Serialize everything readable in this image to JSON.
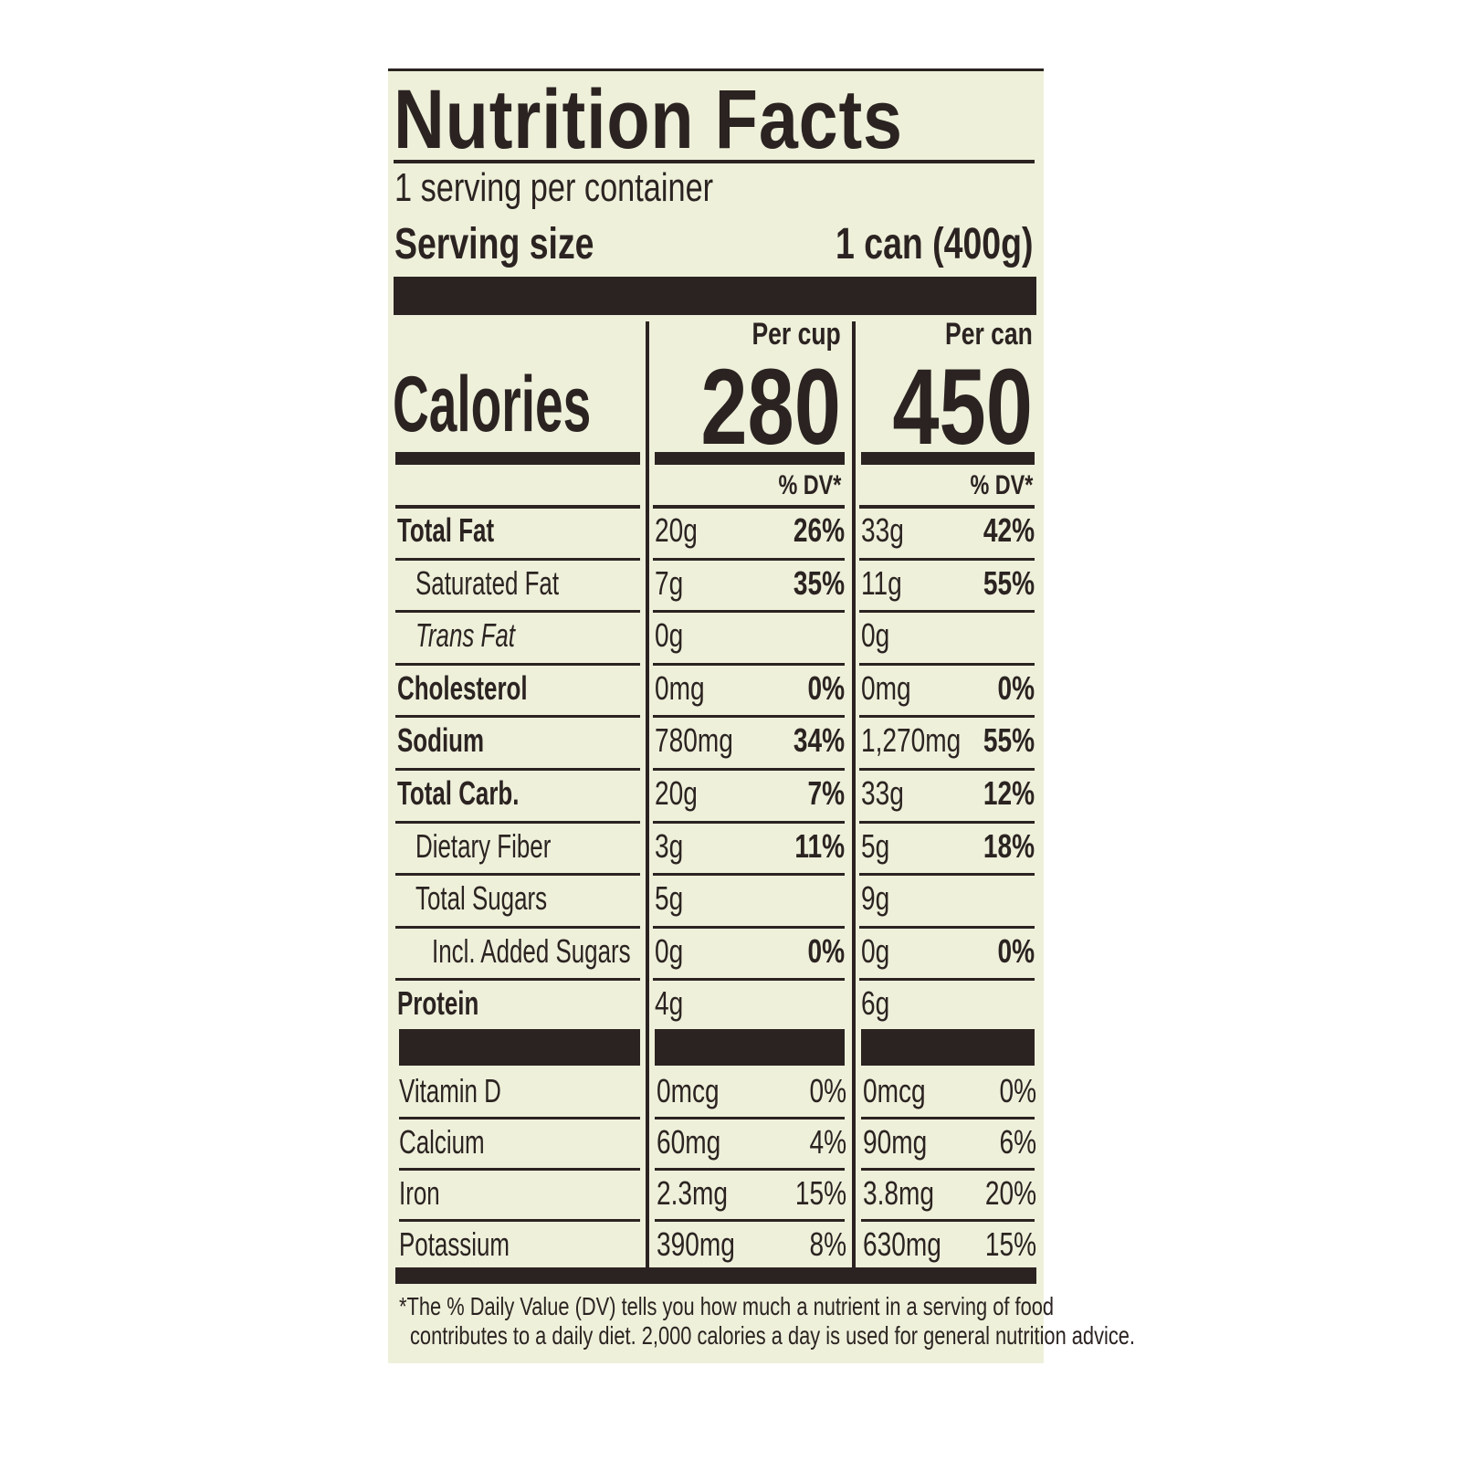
{
  "title": "Nutrition Facts",
  "servings_per_container": "1 serving per container",
  "serving_size_label": "Serving size",
  "serving_size_value": "1 can (400g)",
  "calories_label": "Calories",
  "columns": [
    {
      "header": "Per cup",
      "calories": "280",
      "dv_header": "% DV*"
    },
    {
      "header": "Per can",
      "calories": "450",
      "dv_header": "% DV*"
    }
  ],
  "nutrients": [
    {
      "name": "Total Fat",
      "style": "bold",
      "indent": 0,
      "cup": "20g",
      "cup_dv": "26%",
      "can": "33g",
      "can_dv": "42%"
    },
    {
      "name": "Saturated Fat",
      "style": "normal",
      "indent": 1,
      "cup": "7g",
      "cup_dv": "35%",
      "can": "11g",
      "can_dv": "55%"
    },
    {
      "name": "Trans Fat",
      "style": "trans",
      "indent": 1,
      "cup": "0g",
      "cup_dv": "",
      "can": "0g",
      "can_dv": ""
    },
    {
      "name": "Cholesterol",
      "style": "bold",
      "indent": 0,
      "cup": "0mg",
      "cup_dv": "0%",
      "can": "0mg",
      "can_dv": "0%"
    },
    {
      "name": "Sodium",
      "style": "bold",
      "indent": 0,
      "cup": "780mg",
      "cup_dv": "34%",
      "can": "1,270mg",
      "can_dv": "55%"
    },
    {
      "name": "Total Carb.",
      "style": "bold",
      "indent": 0,
      "cup": "20g",
      "cup_dv": "7%",
      "can": "33g",
      "can_dv": "12%"
    },
    {
      "name": "Dietary Fiber",
      "style": "normal",
      "indent": 1,
      "cup": "3g",
      "cup_dv": "11%",
      "can": "5g",
      "can_dv": "18%"
    },
    {
      "name": "Total Sugars",
      "style": "normal",
      "indent": 1,
      "cup": "5g",
      "cup_dv": "",
      "can": "9g",
      "can_dv": ""
    },
    {
      "name": "Incl. Added Sugars",
      "style": "normal",
      "indent": 2,
      "cup": "0g",
      "cup_dv": "0%",
      "can": "0g",
      "can_dv": "0%"
    },
    {
      "name": "Protein",
      "style": "bold",
      "indent": 0,
      "cup": "4g",
      "cup_dv": "",
      "can": "6g",
      "can_dv": ""
    }
  ],
  "vitamins": [
    {
      "name": "Vitamin D",
      "cup": "0mcg",
      "cup_dv": "0%",
      "can": "0mcg",
      "can_dv": "0%"
    },
    {
      "name": "Calcium",
      "cup": "60mg",
      "cup_dv": "4%",
      "can": "90mg",
      "can_dv": "6%"
    },
    {
      "name": "Iron",
      "cup": "2.3mg",
      "cup_dv": "15%",
      "can": "3.8mg",
      "can_dv": "20%"
    },
    {
      "name": "Potassium",
      "cup": "390mg",
      "cup_dv": "8%",
      "can": "630mg",
      "can_dv": "15%"
    }
  ],
  "footnote_line1": "The % Daily Value (DV) tells you how much a nutrient in a serving of food",
  "footnote_line2": "contributes to a daily diet. 2,000 calories a day is used for general nutrition advice.",
  "footnote_mark": "*",
  "colors": {
    "background": "#eef0da",
    "ink": "#2b2321"
  }
}
